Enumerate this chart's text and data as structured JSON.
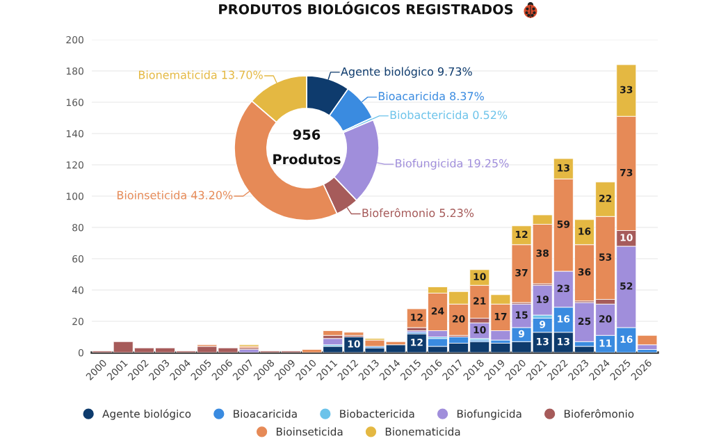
{
  "chart_data": [
    {
      "type": "bar",
      "title": "PRODUTOS BIOLÓGICOS REGISTRADOS",
      "stacked": true,
      "grid": "y",
      "legend": "bottom",
      "categories": [
        "2000",
        "2001",
        "2002",
        "2003",
        "2004",
        "2005",
        "2006",
        "2007",
        "2008",
        "2009",
        "2010",
        "2011",
        "2012",
        "2013",
        "2014",
        "2015",
        "2016",
        "2017",
        "2018",
        "2019",
        "2020",
        "2021",
        "2022",
        "2023",
        "2024",
        "2025",
        "2026"
      ],
      "ylim": [
        0,
        200
      ],
      "yticks": [
        0,
        20,
        40,
        60,
        80,
        100,
        120,
        140,
        160,
        180,
        200
      ],
      "series": [
        {
          "name": "Agente biológico",
          "color": "#0e3b6d",
          "values": [
            0,
            0,
            0,
            0,
            0,
            0,
            0,
            0,
            0,
            0,
            0,
            4,
            10,
            3,
            5,
            12,
            4,
            6,
            7,
            6,
            7,
            13,
            13,
            4,
            0,
            0,
            0
          ],
          "value_labels": [
            null,
            null,
            null,
            null,
            null,
            null,
            null,
            null,
            null,
            null,
            null,
            null,
            "10",
            null,
            null,
            "12",
            null,
            null,
            null,
            null,
            null,
            "13",
            "13",
            null,
            null,
            null,
            null
          ]
        },
        {
          "name": "Bioacaricida",
          "color": "#3a8be0",
          "values": [
            0,
            0,
            0,
            0,
            0,
            0,
            0,
            0,
            0,
            0,
            0,
            0,
            0,
            1,
            0,
            1,
            5,
            4,
            1,
            2,
            9,
            9,
            16,
            3,
            11,
            16,
            2
          ],
          "value_labels": [
            null,
            null,
            null,
            null,
            null,
            null,
            null,
            null,
            null,
            null,
            null,
            null,
            null,
            null,
            null,
            null,
            null,
            null,
            null,
            null,
            "9",
            "9",
            "16",
            null,
            "11",
            "16",
            null
          ]
        },
        {
          "name": "Biobactericida",
          "color": "#6cc3ea",
          "values": [
            0,
            0,
            0,
            0,
            0,
            0,
            0,
            0,
            0,
            0,
            0,
            1,
            0,
            0,
            0,
            0,
            1,
            0,
            1,
            0,
            0,
            2,
            0,
            0,
            0,
            0,
            0
          ]
        },
        {
          "name": "Biofungicida",
          "color": "#a08edb",
          "values": [
            0,
            0,
            0,
            0,
            0,
            0,
            0,
            2,
            0,
            0,
            0,
            4,
            0,
            0,
            0,
            1,
            4,
            0,
            10,
            6,
            15,
            19,
            23,
            25,
            20,
            52,
            3
          ],
          "value_labels": [
            null,
            null,
            null,
            null,
            null,
            null,
            null,
            null,
            null,
            null,
            null,
            null,
            null,
            null,
            null,
            null,
            null,
            null,
            "10",
            null,
            "15",
            "19",
            "23",
            "25",
            "20",
            "52",
            null
          ]
        },
        {
          "name": "Bioferômonio",
          "color": "#a65b5a",
          "values": [
            1,
            7,
            3,
            3,
            1,
            4,
            3,
            1,
            1,
            1,
            0,
            2,
            1,
            0,
            0,
            2,
            0,
            1,
            3,
            0,
            1,
            1,
            0,
            1,
            3,
            10,
            0
          ],
          "value_labels": [
            null,
            null,
            null,
            null,
            null,
            null,
            null,
            null,
            null,
            null,
            null,
            null,
            null,
            null,
            null,
            null,
            null,
            null,
            null,
            null,
            null,
            null,
            null,
            null,
            null,
            "10",
            null
          ]
        },
        {
          "name": "Bioinseticida",
          "color": "#e68a57",
          "values": [
            0,
            0,
            0,
            0,
            0,
            1,
            0,
            1,
            0,
            0,
            2,
            3,
            2,
            4,
            2,
            12,
            24,
            20,
            21,
            17,
            37,
            38,
            59,
            36,
            53,
            73,
            6
          ],
          "value_labels": [
            null,
            null,
            null,
            null,
            null,
            null,
            null,
            null,
            null,
            null,
            null,
            null,
            null,
            null,
            null,
            "12",
            "24",
            "20",
            "21",
            "17",
            "37",
            "38",
            "59",
            "36",
            "53",
            "73",
            null
          ]
        },
        {
          "name": "Bionematicida",
          "color": "#e4b842",
          "values": [
            0,
            0,
            0,
            0,
            0,
            0,
            0,
            1,
            0,
            0,
            0,
            0,
            0,
            1,
            0,
            0,
            4,
            8,
            10,
            6,
            12,
            6,
            13,
            16,
            22,
            33,
            0
          ],
          "value_labels": [
            null,
            null,
            null,
            null,
            null,
            null,
            null,
            null,
            null,
            null,
            null,
            null,
            null,
            null,
            null,
            null,
            null,
            null,
            "10",
            null,
            "12",
            null,
            "13",
            "16",
            "22",
            "33",
            null
          ]
        }
      ]
    },
    {
      "type": "donut",
      "categories": [
        "Agente biológico",
        "Bioacaricida",
        "Biobactericida",
        "Biofungicida",
        "Bioferômonio",
        "Bioinseticida",
        "Bionematicida"
      ],
      "values": [
        9.73,
        8.37,
        0.52,
        19.25,
        5.23,
        43.2,
        13.7
      ],
      "value_labels": [
        "9.73%",
        "8.37%",
        "0.52%",
        "19.25%",
        "5.23%",
        "43.20%",
        "13.70%"
      ],
      "colors": [
        "#0e3b6d",
        "#3a8be0",
        "#6cc3ea",
        "#a08edb",
        "#a65b5a",
        "#e68a57",
        "#e4b842"
      ],
      "annotations": [
        "956",
        "Produtos"
      ]
    }
  ]
}
